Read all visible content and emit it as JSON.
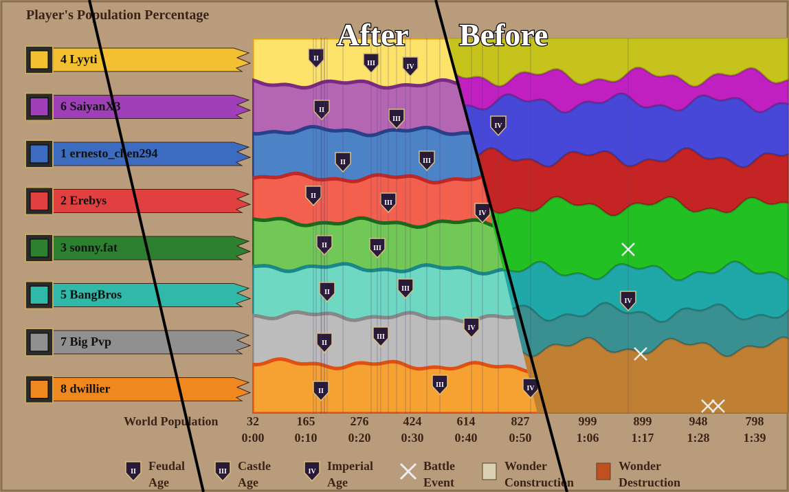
{
  "title": "Player's Population Percentage",
  "overlay": {
    "after": "After",
    "before": "Before"
  },
  "players": [
    {
      "name": "4 Lyyti"
    },
    {
      "name": "6 SaiyanX3"
    },
    {
      "name": "1 ernesto_chen294"
    },
    {
      "name": "2 Erebys"
    },
    {
      "name": "3 sonny.fat"
    },
    {
      "name": "5 BangBros"
    },
    {
      "name": "7 Big Pvp"
    },
    {
      "name": "8 dwillier"
    }
  ],
  "axis": {
    "label": "World Population",
    "ticks": [
      {
        "population": 32,
        "time": "0:00"
      },
      {
        "population": 165,
        "time": "0:10"
      },
      {
        "population": 276,
        "time": "0:20"
      },
      {
        "population": 424,
        "time": "0:30"
      },
      {
        "population": 614,
        "time": "0:40"
      },
      {
        "population": 827,
        "time": "0:50"
      },
      {
        "population": 999,
        "time": "1:06"
      },
      {
        "population": 899,
        "time": "1:17"
      },
      {
        "population": 948,
        "time": "1:28"
      },
      {
        "population": 798,
        "time": "1:39"
      }
    ]
  },
  "markers": [
    {
      "label": "II"
    },
    {
      "label": "III"
    },
    {
      "label": "IV"
    },
    {
      "label": "II"
    },
    {
      "label": "III"
    },
    {
      "label": "IV"
    },
    {
      "label": "II"
    },
    {
      "label": "III"
    },
    {
      "label": "II"
    },
    {
      "label": "III"
    },
    {
      "label": "IV"
    },
    {
      "label": "II"
    },
    {
      "label": "III"
    },
    {
      "label": "II"
    },
    {
      "label": "III"
    },
    {
      "label": "IV"
    },
    {
      "label": "II"
    },
    {
      "label": "III"
    },
    {
      "label": "IV"
    },
    {
      "label": "II"
    },
    {
      "label": "III"
    },
    {
      "label": "IV"
    }
  ],
  "legend": [
    {
      "icon": "II",
      "lines": [
        "Feudal",
        "Age"
      ]
    },
    {
      "icon": "III",
      "lines": [
        "Castle",
        "Age"
      ]
    },
    {
      "icon": "IV",
      "lines": [
        "Imperial",
        "Age"
      ]
    },
    {
      "lines": [
        "Battle",
        "Event"
      ]
    },
    {
      "lines": [
        "Wonder",
        "Construction"
      ]
    },
    {
      "lines": [
        "Wonder",
        "Destruction"
      ]
    }
  ]
}
